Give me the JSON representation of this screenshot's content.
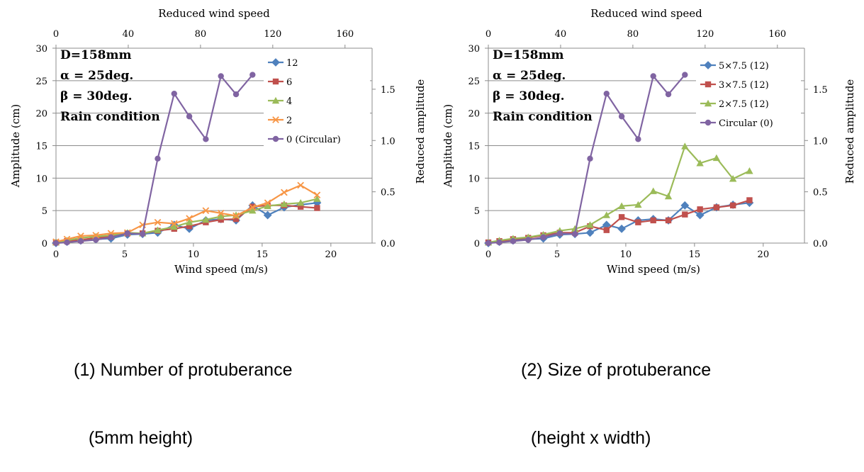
{
  "chart_data": [
    {
      "type": "line",
      "caption_line1": "(1) Number of protuberance",
      "caption_line2": "   (5mm height)",
      "xlabel": "Wind speed (m/s)",
      "ylabel": "Amplitude (cm)",
      "x2label": "Reduced wind speed",
      "y2label": "Reduced amplitude",
      "xlim": [
        0,
        23
      ],
      "ylim": [
        0,
        30
      ],
      "x2lim": [
        0,
        175
      ],
      "y2lim": [
        0,
        1.9
      ],
      "xticks": [
        "0",
        "5",
        "10",
        "15",
        "20"
      ],
      "yticks": [
        "0",
        "5",
        "10",
        "15",
        "20",
        "25",
        "30"
      ],
      "x2ticks": [
        "0",
        "40",
        "80",
        "120",
        "160"
      ],
      "y2ticks": [
        "0.0",
        "0.5",
        "1.0",
        "1.5"
      ],
      "annotations": [
        "D=158mm",
        "α = 25deg.",
        "β = 30deg.",
        "Rain condition"
      ],
      "grid": "horizontal",
      "legend_position": "top-right",
      "series": [
        {
          "name": "12",
          "color": "#4f81bd",
          "marker": "diamond",
          "x": [
            0,
            0.8,
            1.8,
            2.9,
            4.0,
            5.2,
            6.3,
            7.4,
            8.6,
            9.7,
            10.9,
            12.0,
            13.1,
            14.3,
            15.4,
            16.6,
            17.8,
            19.0
          ],
          "y": [
            0,
            0.2,
            0.4,
            0.6,
            0.7,
            1.3,
            1.4,
            1.6,
            2.8,
            2.2,
            3.5,
            3.7,
            3.5,
            5.8,
            4.3,
            5.5,
            5.9,
            6.2
          ]
        },
        {
          "name": "6",
          "color": "#c0504d",
          "marker": "square",
          "x": [
            0,
            0.8,
            1.8,
            2.9,
            4.0,
            5.2,
            6.3,
            7.4,
            8.6,
            9.7,
            10.9,
            12.0,
            13.1,
            14.3,
            15.4,
            16.6,
            17.8,
            19.0
          ],
          "y": [
            0.1,
            0.3,
            0.5,
            0.8,
            1.0,
            1.5,
            1.5,
            1.9,
            2.2,
            2.6,
            3.2,
            3.6,
            3.7,
            5.6,
            5.8,
            5.8,
            5.6,
            5.4
          ]
        },
        {
          "name": "4",
          "color": "#9bbb59",
          "marker": "triangle",
          "x": [
            0,
            0.8,
            1.8,
            2.9,
            4.0,
            5.2,
            6.3,
            7.4,
            8.6,
            9.7,
            10.9,
            12.0,
            13.1,
            14.3,
            15.4,
            16.6,
            17.8,
            19.0
          ],
          "y": [
            0.1,
            0.4,
            0.8,
            1.0,
            1.2,
            1.6,
            1.5,
            2.0,
            2.5,
            3.2,
            3.6,
            4.1,
            4.3,
            5.0,
            5.7,
            6.0,
            6.2,
            6.8
          ]
        },
        {
          "name": "2",
          "color": "#f79646",
          "marker": "x",
          "x": [
            0,
            0.8,
            1.8,
            2.9,
            4.0,
            5.2,
            6.3,
            7.4,
            8.6,
            9.7,
            10.9,
            12.0,
            13.1,
            14.3,
            15.4,
            16.6,
            17.8,
            19.0
          ],
          "y": [
            0.2,
            0.6,
            1.1,
            1.2,
            1.5,
            1.6,
            2.8,
            3.2,
            3.0,
            3.8,
            5.0,
            4.6,
            4.2,
            5.5,
            6.2,
            7.8,
            8.9,
            7.4
          ]
        },
        {
          "name": "0 (Circular)",
          "color": "#8064a2",
          "marker": "circle",
          "x": [
            0,
            0.8,
            1.8,
            2.9,
            4.0,
            5.2,
            6.3,
            7.4,
            8.6,
            9.7,
            10.9,
            12.0,
            13.1,
            14.3
          ],
          "y": [
            0,
            0.1,
            0.3,
            0.5,
            0.9,
            1.5,
            1.4,
            13.0,
            23.0,
            19.5,
            16.0,
            25.7,
            22.9,
            25.9
          ]
        }
      ]
    },
    {
      "type": "line",
      "caption_line1": "(2) Size of protuberance",
      "caption_line2": "  (height x width)",
      "xlabel": "Wind speed (m/s)",
      "ylabel": "Amplitude (cm)",
      "x2label": "Reduced wind speed",
      "y2label": "Reduced amplitude",
      "xlim": [
        0,
        23
      ],
      "ylim": [
        0,
        30
      ],
      "x2lim": [
        0,
        175
      ],
      "y2lim": [
        0,
        1.9
      ],
      "xticks": [
        "0",
        "5",
        "10",
        "15",
        "20"
      ],
      "yticks": [
        "0",
        "5",
        "10",
        "15",
        "20",
        "25",
        "30"
      ],
      "x2ticks": [
        "0",
        "40",
        "80",
        "120",
        "160"
      ],
      "y2ticks": [
        "0.0",
        "0.5",
        "1.0",
        "1.5"
      ],
      "annotations": [
        "D=158mm",
        "α = 25deg.",
        "β = 30deg.",
        "Rain condition"
      ],
      "grid": "horizontal",
      "legend_position": "top-right",
      "series": [
        {
          "name": "5×7.5 (12)",
          "color": "#4f81bd",
          "marker": "diamond",
          "x": [
            0,
            0.8,
            1.8,
            2.9,
            4.0,
            5.2,
            6.3,
            7.4,
            8.6,
            9.7,
            10.9,
            12.0,
            13.1,
            14.3,
            15.4,
            16.6,
            17.8,
            19.0
          ],
          "y": [
            0,
            0.2,
            0.4,
            0.6,
            0.7,
            1.3,
            1.4,
            1.6,
            2.8,
            2.2,
            3.5,
            3.7,
            3.5,
            5.8,
            4.3,
            5.5,
            5.9,
            6.2
          ]
        },
        {
          "name": "3×7.5 (12)",
          "color": "#c0504d",
          "marker": "square",
          "x": [
            0,
            0.8,
            1.8,
            2.9,
            4.0,
            5.2,
            6.3,
            7.4,
            8.6,
            9.7,
            10.9,
            12.0,
            13.1,
            14.3,
            15.4,
            16.6,
            17.8,
            19.0
          ],
          "y": [
            0.1,
            0.3,
            0.6,
            0.8,
            1.2,
            1.6,
            1.6,
            2.6,
            2.0,
            4.0,
            3.2,
            3.5,
            3.5,
            4.4,
            5.2,
            5.5,
            5.8,
            6.6
          ]
        },
        {
          "name": "2×7.5 (12)",
          "color": "#9bbb59",
          "marker": "triangle",
          "x": [
            0,
            0.8,
            1.8,
            2.9,
            4.0,
            5.2,
            6.3,
            7.4,
            8.6,
            9.7,
            10.9,
            12.0,
            13.1,
            14.3,
            15.4,
            16.6,
            17.8,
            19.0
          ],
          "y": [
            0.1,
            0.4,
            0.7,
            0.9,
            1.3,
            1.9,
            2.2,
            2.8,
            4.3,
            5.7,
            5.9,
            8.0,
            7.2,
            14.9,
            12.3,
            13.1,
            9.9,
            11.1
          ]
        },
        {
          "name": "Circular (0)",
          "color": "#8064a2",
          "marker": "circle",
          "x": [
            0,
            0.8,
            1.8,
            2.9,
            4.0,
            5.2,
            6.3,
            7.4,
            8.6,
            9.7,
            10.9,
            12.0,
            13.1,
            14.3
          ],
          "y": [
            0,
            0.1,
            0.3,
            0.5,
            0.9,
            1.5,
            1.4,
            13.0,
            23.0,
            19.5,
            16.0,
            25.7,
            22.9,
            25.9
          ]
        }
      ]
    }
  ]
}
